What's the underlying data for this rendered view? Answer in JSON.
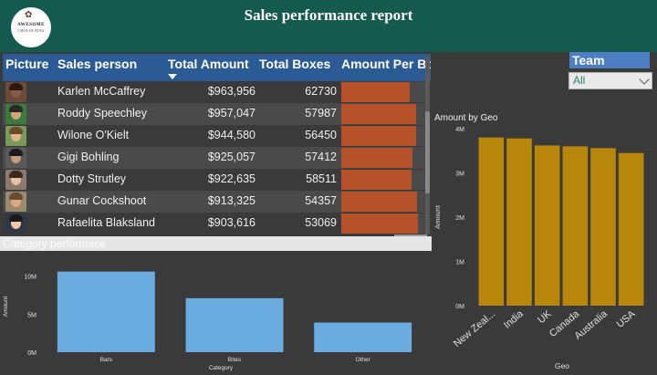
{
  "header": {
    "title": "Sales performance report",
    "logo_text_1": "AWESOME",
    "logo_text_2": "CHOCOLATES",
    "logo_icon": "chocolate-flower-icon",
    "background": "#155a4e"
  },
  "table": {
    "columns": [
      "Picture",
      "Sales person",
      "Total Amount",
      "Total Boxes",
      "Amount Per Box"
    ],
    "sort_column": "Total Amount",
    "rows": [
      {
        "name": "Karlen McCaffrey",
        "amount": "$963,956",
        "boxes": "62730",
        "per_box_fill": 0.82
      },
      {
        "name": "Roddy Speechley",
        "amount": "$957,047",
        "boxes": "57987",
        "per_box_fill": 0.89
      },
      {
        "name": "Wilone O'Kielt",
        "amount": "$944,580",
        "boxes": "56450",
        "per_box_fill": 0.89
      },
      {
        "name": "Gigi Bohling",
        "amount": "$925,057",
        "boxes": "57412",
        "per_box_fill": 0.85
      },
      {
        "name": "Dotty Strutley",
        "amount": "$922,635",
        "boxes": "58511",
        "per_box_fill": 0.84
      },
      {
        "name": "Gunar Cockshoot",
        "amount": "$913,325",
        "boxes": "54357",
        "per_box_fill": 0.9
      },
      {
        "name": "Rafaelita Blaksland",
        "amount": "$903,616",
        "boxes": "53069",
        "per_box_fill": 0.91
      }
    ],
    "bar_color": "#b5522a",
    "header_color": "#2a5b94"
  },
  "category": {
    "title": "Category performace"
  },
  "team": {
    "label": "Team",
    "selected": "All"
  },
  "chart_data": [
    {
      "type": "bar",
      "title": "",
      "categories": [
        "Bars",
        "Bites",
        "Other"
      ],
      "values": [
        10.6,
        7.1,
        3.9
      ],
      "unit": "M",
      "xlabel": "Category",
      "ylabel": "Amount",
      "yticks": [
        "0M",
        "5M",
        "10M"
      ],
      "ylim": [
        0,
        12
      ],
      "color": "#6aace0"
    },
    {
      "type": "bar",
      "title": "Amount by Geo",
      "categories": [
        "New Zeal...",
        "India",
        "UK",
        "Canada",
        "Australia",
        "USA"
      ],
      "values": [
        3.8,
        3.78,
        3.62,
        3.6,
        3.56,
        3.45
      ],
      "unit": "M",
      "xlabel": "Geo",
      "ylabel": "Amount",
      "yticks": [
        "0M",
        "1M",
        "2M",
        "3M",
        "4M"
      ],
      "ylim": [
        0,
        4
      ],
      "color": "#b8860b"
    }
  ]
}
